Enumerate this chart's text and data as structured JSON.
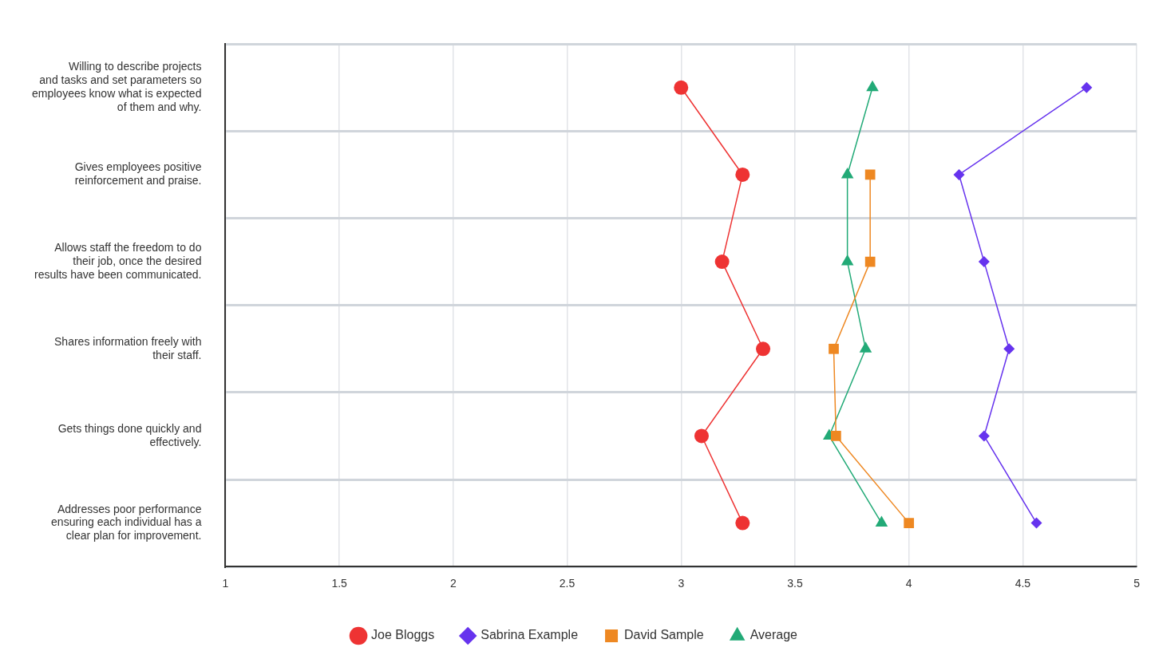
{
  "chart_data": {
    "type": "line",
    "orientation": "horizontal",
    "categories": [
      "Willing to describe projects and tasks and set parameters so employees know what is expected of them and why.",
      "Gives employees positive reinforcement and praise.",
      "Allows staff the freedom to do their job, once the desired results have been communicated.",
      "Shares information freely with their staff.",
      "Gets things done quickly and effectively.",
      "Addresses poor performance ensuring each individual has a clear plan for improvement."
    ],
    "series": [
      {
        "name": "Joe Bloggs",
        "color": "#ee3333",
        "marker": "circle",
        "values": [
          3.0,
          3.27,
          3.18,
          3.36,
          3.09,
          3.27
        ]
      },
      {
        "name": "Sabrina Example",
        "color": "#6633ee",
        "marker": "diamond",
        "values": [
          4.78,
          4.22,
          4.33,
          4.44,
          4.33,
          4.56
        ]
      },
      {
        "name": "David Sample",
        "color": "#ee8822",
        "marker": "square",
        "values": [
          null,
          3.83,
          3.83,
          3.67,
          3.68,
          4.0
        ]
      },
      {
        "name": "Average",
        "color": "#22aa77",
        "marker": "triangle",
        "values": [
          3.84,
          3.73,
          3.73,
          3.81,
          3.65,
          3.88
        ]
      }
    ],
    "xlim": [
      1,
      5
    ],
    "xticks": [
      1,
      1.5,
      2,
      2.5,
      3,
      3.5,
      4,
      4.5,
      5
    ],
    "grid": true,
    "legend": "bottom",
    "line_style": "solid"
  }
}
